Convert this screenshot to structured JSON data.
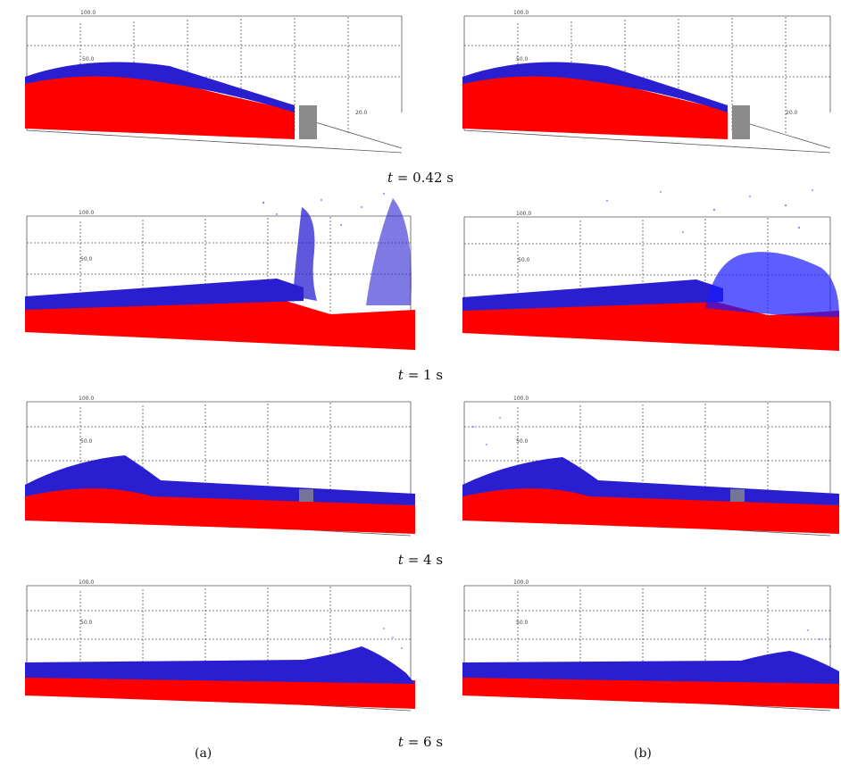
{
  "figure": {
    "rows": [
      {
        "time_label": "t",
        "time_value": "= 0.42 s"
      },
      {
        "time_label": "t",
        "time_value": "= 1 s"
      },
      {
        "time_label": "t",
        "time_value": "= 4 s"
      },
      {
        "time_label": "t",
        "time_value": "= 6 s"
      }
    ],
    "columns": [
      {
        "label": "(a)"
      },
      {
        "label": "(b)"
      }
    ],
    "tick_labels": {
      "top": "100.0",
      "mid": "50.0",
      "side": "20.0"
    },
    "colors": {
      "lower_layer": "#ff0000",
      "upper_layer": "#2a1fd0",
      "spray": "#1a1aff",
      "grid": "#555555",
      "obstacle": "#8a8a8a"
    }
  }
}
